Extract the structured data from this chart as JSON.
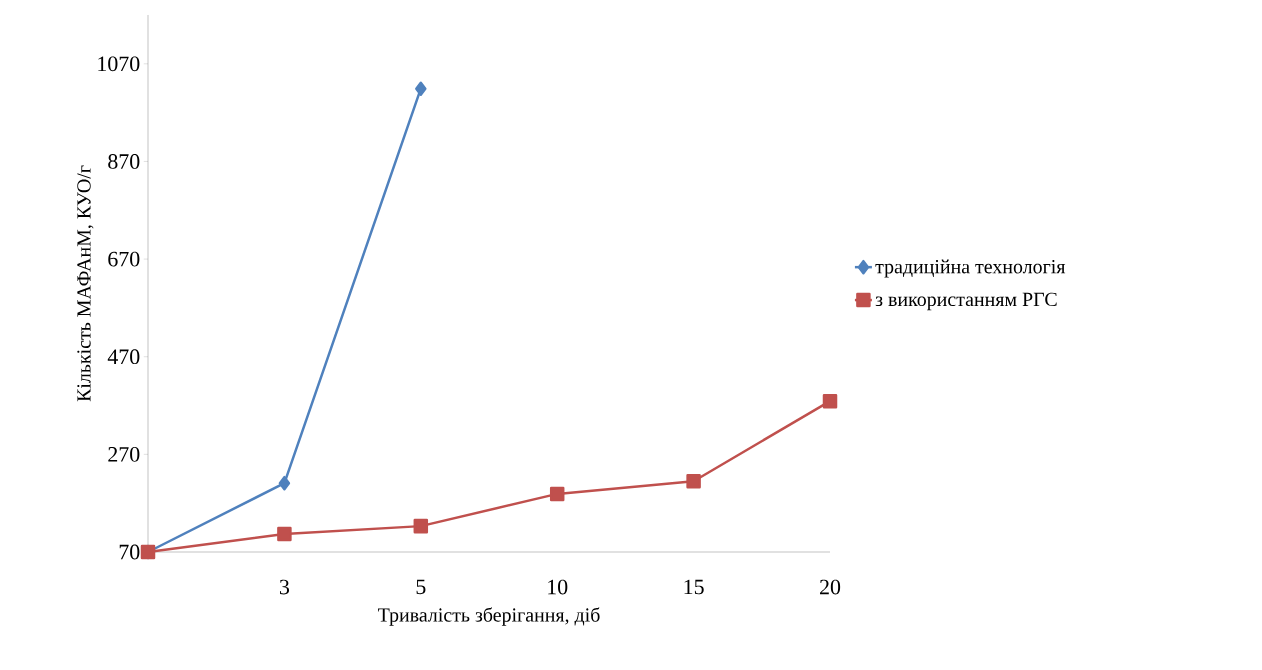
{
  "chart_data": {
    "type": "line",
    "xlabel": "Тривалість зберігання, діб",
    "ylabel": "Кількість МАФАнМ, КУО/г",
    "categories": [
      null,
      "3",
      "5",
      "10",
      "15",
      "20"
    ],
    "series": [
      {
        "name": "традиційна технологія",
        "color": "#4f81bd",
        "marker": "diamond",
        "values": [
          70,
          211,
          1019,
          null,
          null,
          null
        ]
      },
      {
        "name": "з використанням РГС",
        "color": "#c0504d",
        "marker": "square",
        "values": [
          70,
          107,
          123,
          189,
          215,
          379
        ]
      }
    ],
    "ylim": [
      70,
      1170
    ],
    "yticks": [
      70,
      270,
      470,
      670,
      870,
      1070
    ],
    "grid": false,
    "legend": "right",
    "line_style": "solid"
  }
}
